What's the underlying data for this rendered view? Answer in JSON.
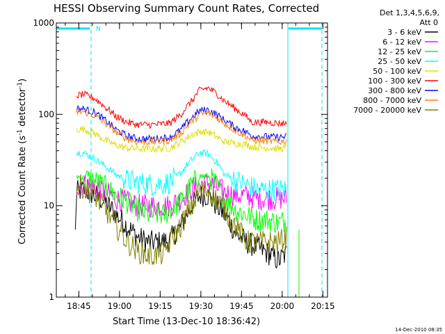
{
  "chart_data": {
    "type": "line",
    "title": "HESSI Observing Summary Count Rates, Corrected",
    "xlabel": "Start Time (13-Dec-10 18:36:42)",
    "ylabel_prefix": "Corrected Count Rate (s",
    "ylabel_sup1": "-1",
    "ylabel_mid": " detector",
    "ylabel_sup2": "-1",
    "ylabel_suffix": ")",
    "ylabel": "Corrected Count Rate (s-1 detector-1)",
    "yscale": "log",
    "ylim": [
      1,
      1000
    ],
    "xlim_minutes": [
      0,
      100
    ],
    "x_units": "minutes after 18:36:42",
    "x_ticks": [
      {
        "label": "18:45",
        "t": 8.3
      },
      {
        "label": "19:00",
        "t": 23.3
      },
      {
        "label": "19:15",
        "t": 38.3
      },
      {
        "label": "19:30",
        "t": 53.3
      },
      {
        "label": "19:45",
        "t": 68.3
      },
      {
        "label": "20:00",
        "t": 83.3
      },
      {
        "label": "20:15",
        "t": 98.3
      }
    ],
    "y_ticks": [
      {
        "label": "1",
        "v": 1
      },
      {
        "label": "10",
        "v": 10
      },
      {
        "label": "100",
        "v": 100
      },
      {
        "label": "1000",
        "v": 1000
      }
    ],
    "legend_header": [
      "Det 1,3,4,5,6,9,",
      "Att 0"
    ],
    "series": [
      {
        "name": "3 - 6 keV",
        "color": "#000000",
        "points": [
          [
            7,
            5
          ],
          [
            7.5,
            14
          ],
          [
            10,
            15
          ],
          [
            14,
            13
          ],
          [
            18,
            11
          ],
          [
            22,
            8
          ],
          [
            26,
            6
          ],
          [
            30,
            4.5
          ],
          [
            34,
            4
          ],
          [
            38,
            4
          ],
          [
            42,
            4.2
          ],
          [
            46,
            6
          ],
          [
            50,
            10
          ],
          [
            53,
            13
          ],
          [
            56,
            13
          ],
          [
            59,
            10
          ],
          [
            62,
            8
          ],
          [
            66,
            5
          ],
          [
            70,
            4
          ],
          [
            74,
            3.5
          ],
          [
            78,
            3
          ],
          [
            82,
            2.5
          ],
          [
            85,
            3
          ]
        ]
      },
      {
        "name": "6 - 12 keV",
        "color": "#ff00ff",
        "points": [
          [
            7.5,
            17
          ],
          [
            10,
            17
          ],
          [
            14,
            16
          ],
          [
            18,
            14
          ],
          [
            22,
            12
          ],
          [
            26,
            11
          ],
          [
            30,
            10
          ],
          [
            36,
            10
          ],
          [
            42,
            10
          ],
          [
            46,
            12
          ],
          [
            50,
            15
          ],
          [
            53,
            17
          ],
          [
            56,
            18
          ],
          [
            59,
            16
          ],
          [
            62,
            14
          ],
          [
            66,
            13
          ],
          [
            70,
            13
          ],
          [
            74,
            12
          ],
          [
            78,
            12
          ],
          [
            82,
            12
          ],
          [
            85,
            12
          ]
        ]
      },
      {
        "name": "12 - 25 keV",
        "color": "#00ff00",
        "points": [
          [
            7.5,
            21
          ],
          [
            10,
            20
          ],
          [
            14,
            19
          ],
          [
            18,
            16
          ],
          [
            22,
            13
          ],
          [
            26,
            11
          ],
          [
            30,
            9
          ],
          [
            34,
            8
          ],
          [
            40,
            8
          ],
          [
            46,
            11
          ],
          [
            50,
            17
          ],
          [
            53,
            21
          ],
          [
            56,
            21
          ],
          [
            59,
            17
          ],
          [
            62,
            12
          ],
          [
            66,
            9
          ],
          [
            70,
            8
          ],
          [
            74,
            7
          ],
          [
            78,
            7
          ],
          [
            82,
            6.5
          ],
          [
            85,
            7
          ]
        ]
      },
      {
        "name": "25 - 50 keV",
        "color": "#00ffff",
        "points": [
          [
            7.5,
            38
          ],
          [
            10,
            38
          ],
          [
            14,
            33
          ],
          [
            18,
            27
          ],
          [
            22,
            22
          ],
          [
            26,
            19
          ],
          [
            30,
            18
          ],
          [
            36,
            17
          ],
          [
            42,
            18
          ],
          [
            46,
            23
          ],
          [
            50,
            32
          ],
          [
            53,
            38
          ],
          [
            56,
            37
          ],
          [
            59,
            30
          ],
          [
            62,
            22
          ],
          [
            66,
            19
          ],
          [
            70,
            17
          ],
          [
            74,
            15
          ],
          [
            78,
            15
          ],
          [
            82,
            15
          ],
          [
            85,
            15
          ]
        ]
      },
      {
        "name": "50 - 100 keV",
        "color": "#dddd00",
        "points": [
          [
            7.5,
            68
          ],
          [
            10,
            69
          ],
          [
            14,
            62
          ],
          [
            18,
            52
          ],
          [
            22,
            46
          ],
          [
            26,
            43
          ],
          [
            30,
            42
          ],
          [
            36,
            42
          ],
          [
            42,
            43
          ],
          [
            46,
            50
          ],
          [
            50,
            60
          ],
          [
            53,
            65
          ],
          [
            56,
            64
          ],
          [
            59,
            57
          ],
          [
            62,
            50
          ],
          [
            66,
            48
          ],
          [
            70,
            47
          ],
          [
            72,
            44
          ],
          [
            78,
            43
          ],
          [
            82,
            42
          ],
          [
            85,
            43
          ]
        ]
      },
      {
        "name": "100 - 300 keV",
        "color": "#ff0000",
        "points": [
          [
            7.5,
            160
          ],
          [
            10,
            165
          ],
          [
            14,
            150
          ],
          [
            18,
            120
          ],
          [
            22,
            95
          ],
          [
            26,
            82
          ],
          [
            30,
            77
          ],
          [
            36,
            77
          ],
          [
            42,
            80
          ],
          [
            46,
            100
          ],
          [
            50,
            140
          ],
          [
            53,
            185
          ],
          [
            56,
            195
          ],
          [
            59,
            170
          ],
          [
            62,
            140
          ],
          [
            66,
            115
          ],
          [
            70,
            95
          ],
          [
            72,
            82
          ],
          [
            78,
            82
          ],
          [
            82,
            80
          ],
          [
            85,
            80
          ]
        ]
      },
      {
        "name": "300 - 800 keV",
        "color": "#0000ff",
        "points": [
          [
            7.5,
            115
          ],
          [
            10,
            115
          ],
          [
            14,
            105
          ],
          [
            18,
            86
          ],
          [
            22,
            68
          ],
          [
            26,
            58
          ],
          [
            30,
            54
          ],
          [
            36,
            54
          ],
          [
            42,
            56
          ],
          [
            46,
            68
          ],
          [
            50,
            92
          ],
          [
            53,
            110
          ],
          [
            56,
            112
          ],
          [
            59,
            100
          ],
          [
            62,
            86
          ],
          [
            66,
            72
          ],
          [
            70,
            64
          ],
          [
            72,
            58
          ],
          [
            78,
            57
          ],
          [
            82,
            56
          ],
          [
            85,
            57
          ]
        ]
      },
      {
        "name": "800 - 7000 keV",
        "color": "#ff8000",
        "points": [
          [
            7.5,
            105
          ],
          [
            10,
            107
          ],
          [
            14,
            97
          ],
          [
            18,
            80
          ],
          [
            22,
            64
          ],
          [
            26,
            54
          ],
          [
            30,
            50
          ],
          [
            36,
            50
          ],
          [
            42,
            52
          ],
          [
            46,
            62
          ],
          [
            50,
            84
          ],
          [
            53,
            100
          ],
          [
            56,
            103
          ],
          [
            59,
            92
          ],
          [
            62,
            80
          ],
          [
            66,
            66
          ],
          [
            70,
            58
          ],
          [
            72,
            52
          ],
          [
            78,
            51
          ],
          [
            82,
            50
          ],
          [
            85,
            51
          ]
        ]
      },
      {
        "name": "7000 - 20000 keV",
        "color": "#808000",
        "points": [
          [
            7.5,
            17
          ],
          [
            10,
            16
          ],
          [
            14,
            13
          ],
          [
            18,
            9
          ],
          [
            22,
            6
          ],
          [
            26,
            4
          ],
          [
            30,
            3.2
          ],
          [
            34,
            2.8
          ],
          [
            40,
            3
          ],
          [
            46,
            6
          ],
          [
            50,
            10
          ],
          [
            53,
            14
          ],
          [
            56,
            15
          ],
          [
            59,
            12
          ],
          [
            62,
            9
          ],
          [
            66,
            6
          ],
          [
            70,
            4
          ],
          [
            74,
            4
          ],
          [
            78,
            4
          ],
          [
            82,
            4
          ],
          [
            85,
            4.5
          ]
        ]
      }
    ],
    "flag_label": "N",
    "timestamp": "14-Dec-2010 08:35"
  },
  "colors": {
    "flag": "#00e5ee",
    "axis": "#000000",
    "background": "#ffffff"
  }
}
